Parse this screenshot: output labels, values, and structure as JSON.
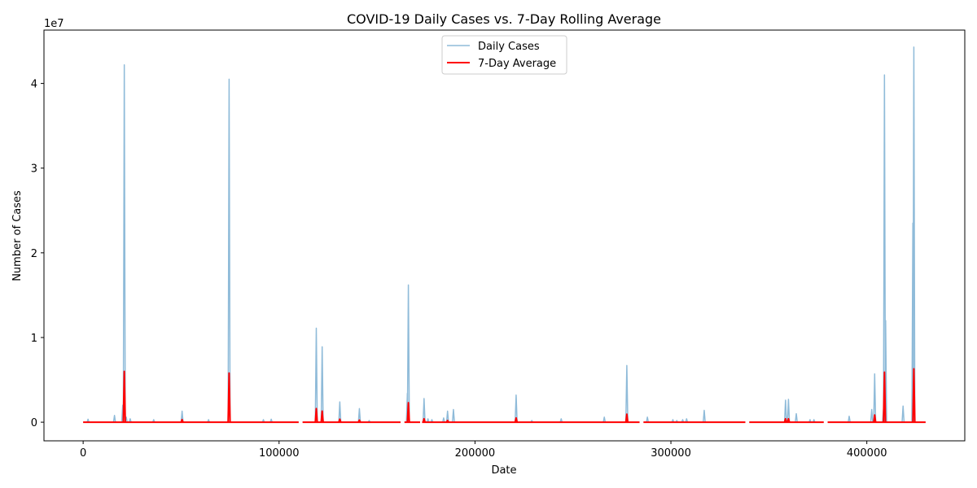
{
  "chart_data": {
    "type": "line",
    "title": "COVID-19 Daily Cases vs. 7-Day Rolling Average",
    "xlabel": "Date",
    "ylabel": "Number of Cases",
    "y_offset_label": "1e7",
    "y_unit_multiplier": 10000000,
    "xlim": [
      -20000,
      450000
    ],
    "ylim": [
      -2.2,
      46.3
    ],
    "x_ticks": [
      0,
      100000,
      200000,
      300000,
      400000
    ],
    "x_tick_labels": [
      "0",
      "100000",
      "200000",
      "300000",
      "400000"
    ],
    "y_ticks": [
      0,
      10,
      20,
      30,
      40
    ],
    "y_tick_labels": [
      "0",
      "1",
      "2",
      "3",
      "4"
    ],
    "grid": false,
    "legend_position": "top-center",
    "series": [
      {
        "name": "Daily Cases",
        "color": "#8fbbd9",
        "line_width": 1.5,
        "spikes": [
          [
            2500,
            0.35
          ],
          [
            16000,
            0.8
          ],
          [
            20200,
            2.0
          ],
          [
            21000,
            42.2
          ],
          [
            22000,
            0.6
          ],
          [
            24000,
            0.4
          ],
          [
            36000,
            0.3
          ],
          [
            50500,
            1.3
          ],
          [
            64000,
            0.3
          ],
          [
            74500,
            40.5
          ],
          [
            92000,
            0.3
          ],
          [
            96000,
            0.35
          ],
          [
            119000,
            11.1
          ],
          [
            122000,
            8.9
          ],
          [
            131000,
            2.4
          ],
          [
            141000,
            1.6
          ],
          [
            146000,
            0.2
          ],
          [
            165500,
            3.4
          ],
          [
            166000,
            16.2
          ],
          [
            174000,
            2.8
          ],
          [
            176000,
            0.4
          ],
          [
            178000,
            0.3
          ],
          [
            184000,
            0.5
          ],
          [
            186000,
            1.3
          ],
          [
            189000,
            1.5
          ],
          [
            221000,
            3.2
          ],
          [
            229000,
            0.2
          ],
          [
            244000,
            0.4
          ],
          [
            266000,
            0.6
          ],
          [
            277500,
            6.7
          ],
          [
            288000,
            0.6
          ],
          [
            301000,
            0.3
          ],
          [
            303000,
            0.2
          ],
          [
            306000,
            0.3
          ],
          [
            308000,
            0.4
          ],
          [
            317000,
            1.4
          ],
          [
            358500,
            2.6
          ],
          [
            360000,
            2.7
          ],
          [
            364000,
            1.0
          ],
          [
            371000,
            0.3
          ],
          [
            373000,
            0.3
          ],
          [
            391000,
            0.7
          ],
          [
            402500,
            1.5
          ],
          [
            404000,
            5.7
          ],
          [
            408500,
            1.5
          ],
          [
            409000,
            41.0
          ],
          [
            409600,
            12.0
          ],
          [
            418500,
            1.9
          ],
          [
            423500,
            23.5
          ],
          [
            424000,
            44.3
          ]
        ]
      },
      {
        "name": "7-Day Average",
        "color": "#ff0000",
        "line_width": 2,
        "spikes": [
          [
            21000,
            6.0
          ],
          [
            50500,
            0.3
          ],
          [
            74500,
            5.8
          ],
          [
            119000,
            1.6
          ],
          [
            122000,
            1.3
          ],
          [
            131000,
            0.35
          ],
          [
            141000,
            0.25
          ],
          [
            166000,
            2.3
          ],
          [
            174000,
            0.4
          ],
          [
            186000,
            0.2
          ],
          [
            221000,
            0.5
          ],
          [
            277500,
            0.95
          ],
          [
            358500,
            0.4
          ],
          [
            360000,
            0.4
          ],
          [
            404000,
            0.85
          ],
          [
            409000,
            5.9
          ],
          [
            424000,
            6.3
          ]
        ]
      }
    ]
  }
}
